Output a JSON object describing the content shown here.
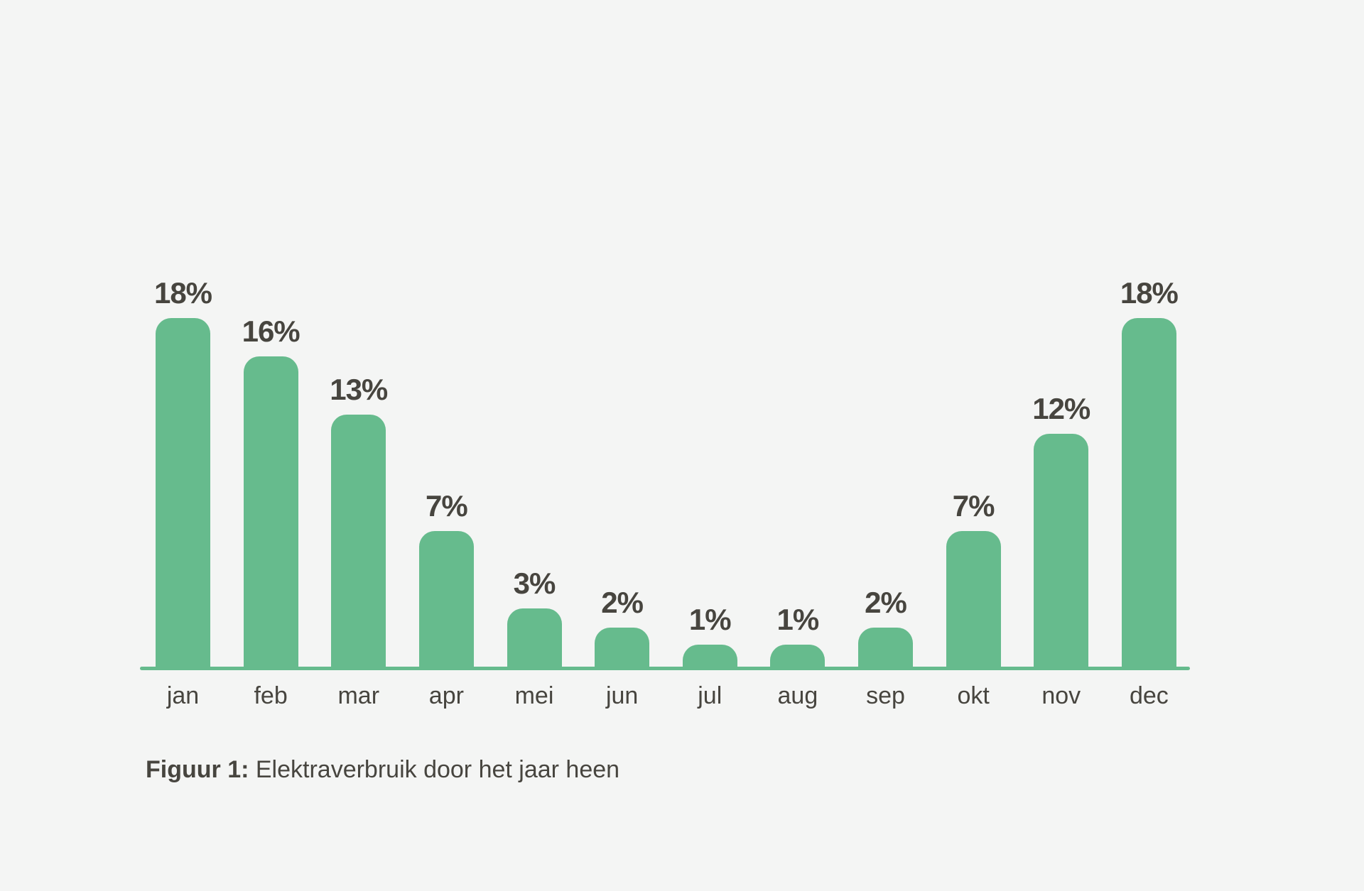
{
  "chart_data": {
    "type": "bar",
    "title": "",
    "xlabel": "",
    "ylabel": "",
    "unit": "%",
    "categories": [
      "jan",
      "feb",
      "mar",
      "apr",
      "mei",
      "jun",
      "jul",
      "aug",
      "sep",
      "okt",
      "nov",
      "dec"
    ],
    "values": [
      18,
      16,
      13,
      7,
      3,
      2,
      1,
      1,
      2,
      7,
      12,
      18
    ],
    "value_labels": [
      "18%",
      "16%",
      "13%",
      "7%",
      "3%",
      "2%",
      "1%",
      "1%",
      "2%",
      "7%",
      "12%",
      "18%"
    ],
    "ylim": [
      0,
      20
    ],
    "grid": false,
    "legend": "none",
    "orientation": "vertical"
  },
  "caption": {
    "prefix": "Figuur 1:",
    "text": " Elektraverbruik door het jaar heen"
  },
  "colors": {
    "bar": "#66BB8D",
    "axis_line": "#66BB8D",
    "background": "#F4F5F4",
    "text": "#47453F"
  }
}
